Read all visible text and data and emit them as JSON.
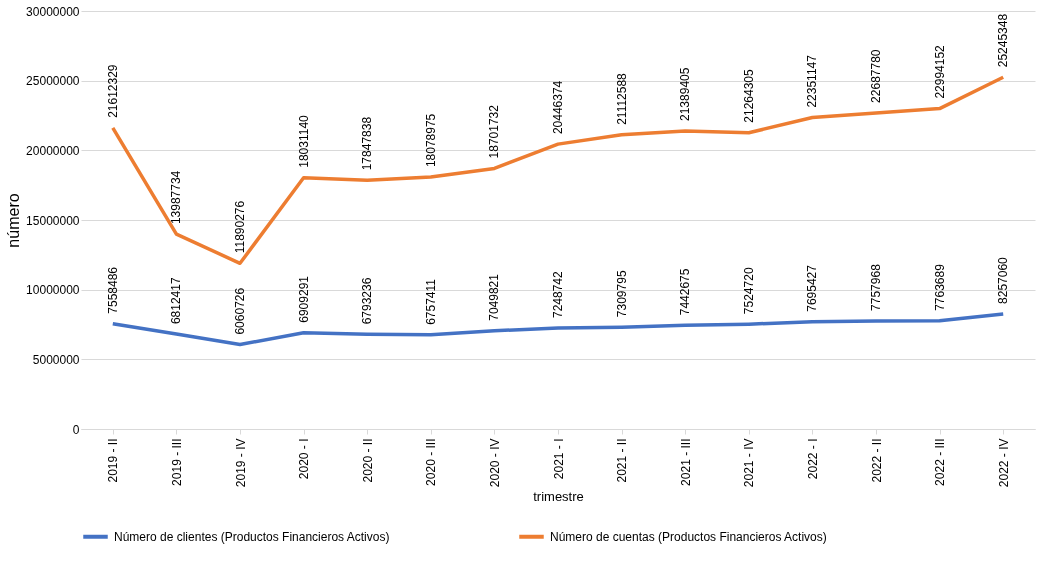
{
  "chart_data": {
    "type": "line",
    "xlabel": "trimestre",
    "ylabel": "número",
    "categories": [
      "2019 - II",
      "2019 - III",
      "2019 - IV",
      "2020 - I",
      "2020 - II",
      "2020 - III",
      "2020 - IV",
      "2021 - I",
      "2021 - II",
      "2021 - III",
      "2021 - IV",
      "2022 - I",
      "2022 - II",
      "2022 - III",
      "2022 - IV"
    ],
    "series": [
      {
        "name": "Número de clientes (Productos Financieros Activos)",
        "color": "#4472c4",
        "values": [
          7558486,
          6812417,
          6060726,
          6909291,
          6793236,
          6757411,
          7049821,
          7248742,
          7309795,
          7442675,
          7524720,
          7695427,
          7757968,
          7763689,
          8257060
        ]
      },
      {
        "name": "Número de cuentas (Productos Financieros Activos)",
        "color": "#ed7d31",
        "values": [
          21612329,
          13987734,
          11890276,
          18031140,
          17847838,
          18078975,
          18701732,
          20446374,
          21112588,
          21389405,
          21264305,
          22351147,
          22687780,
          22994152,
          25245348
        ]
      }
    ],
    "ylim": [
      0,
      30000000
    ],
    "yticks": [
      0,
      5000000,
      10000000,
      15000000,
      20000000,
      25000000,
      30000000
    ],
    "grid": "y",
    "legend": "bottom",
    "data_labels": true,
    "marker": "none",
    "line_style": "solid"
  }
}
